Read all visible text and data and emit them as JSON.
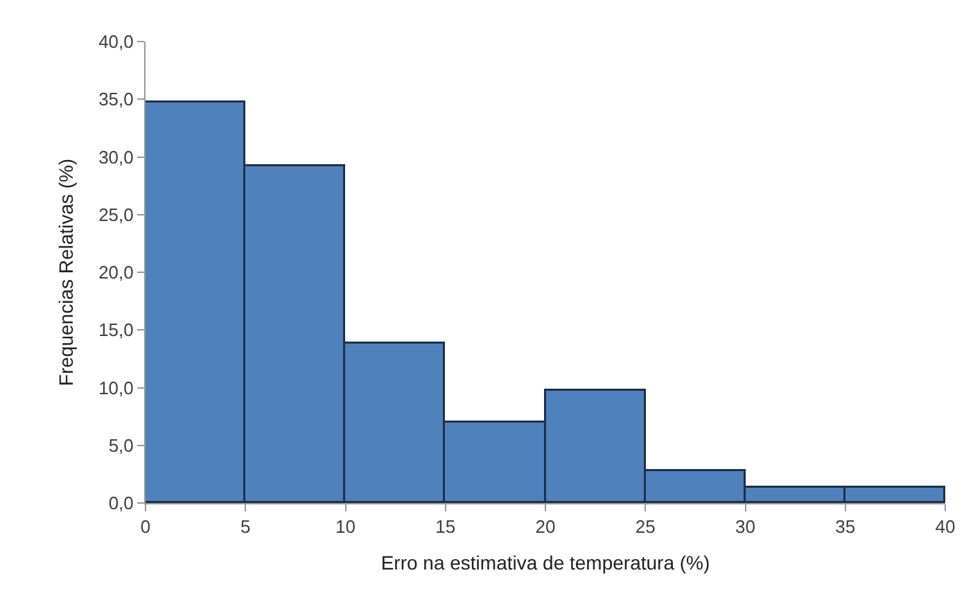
{
  "chart_data": {
    "type": "histogram",
    "xlabel": "Erro na estimativa de temperatura (%)",
    "ylabel": "Frequencias Relativas (%)",
    "bins": [
      0,
      5,
      10,
      15,
      20,
      25,
      30,
      35,
      40
    ],
    "values": [
      34.7,
      29.2,
      13.8,
      7.0,
      9.7,
      2.8,
      1.3,
      1.3
    ],
    "color": "#4f81bd",
    "xlim": [
      0,
      40
    ],
    "xticks": [
      0,
      5,
      10,
      15,
      20,
      25,
      30,
      35,
      40
    ],
    "ylim": [
      0,
      40
    ],
    "yticks": [
      {
        "value": 0,
        "label": "0,0"
      },
      {
        "value": 5,
        "label": "5,0"
      },
      {
        "value": 10,
        "label": "10,0"
      },
      {
        "value": 15,
        "label": "15,0"
      },
      {
        "value": 20,
        "label": "20,0"
      },
      {
        "value": 25,
        "label": "25,0"
      },
      {
        "value": 30,
        "label": "30,0"
      },
      {
        "value": 35,
        "label": "35,0"
      },
      {
        "value": 40,
        "label": "40,0"
      }
    ],
    "grid": false
  }
}
